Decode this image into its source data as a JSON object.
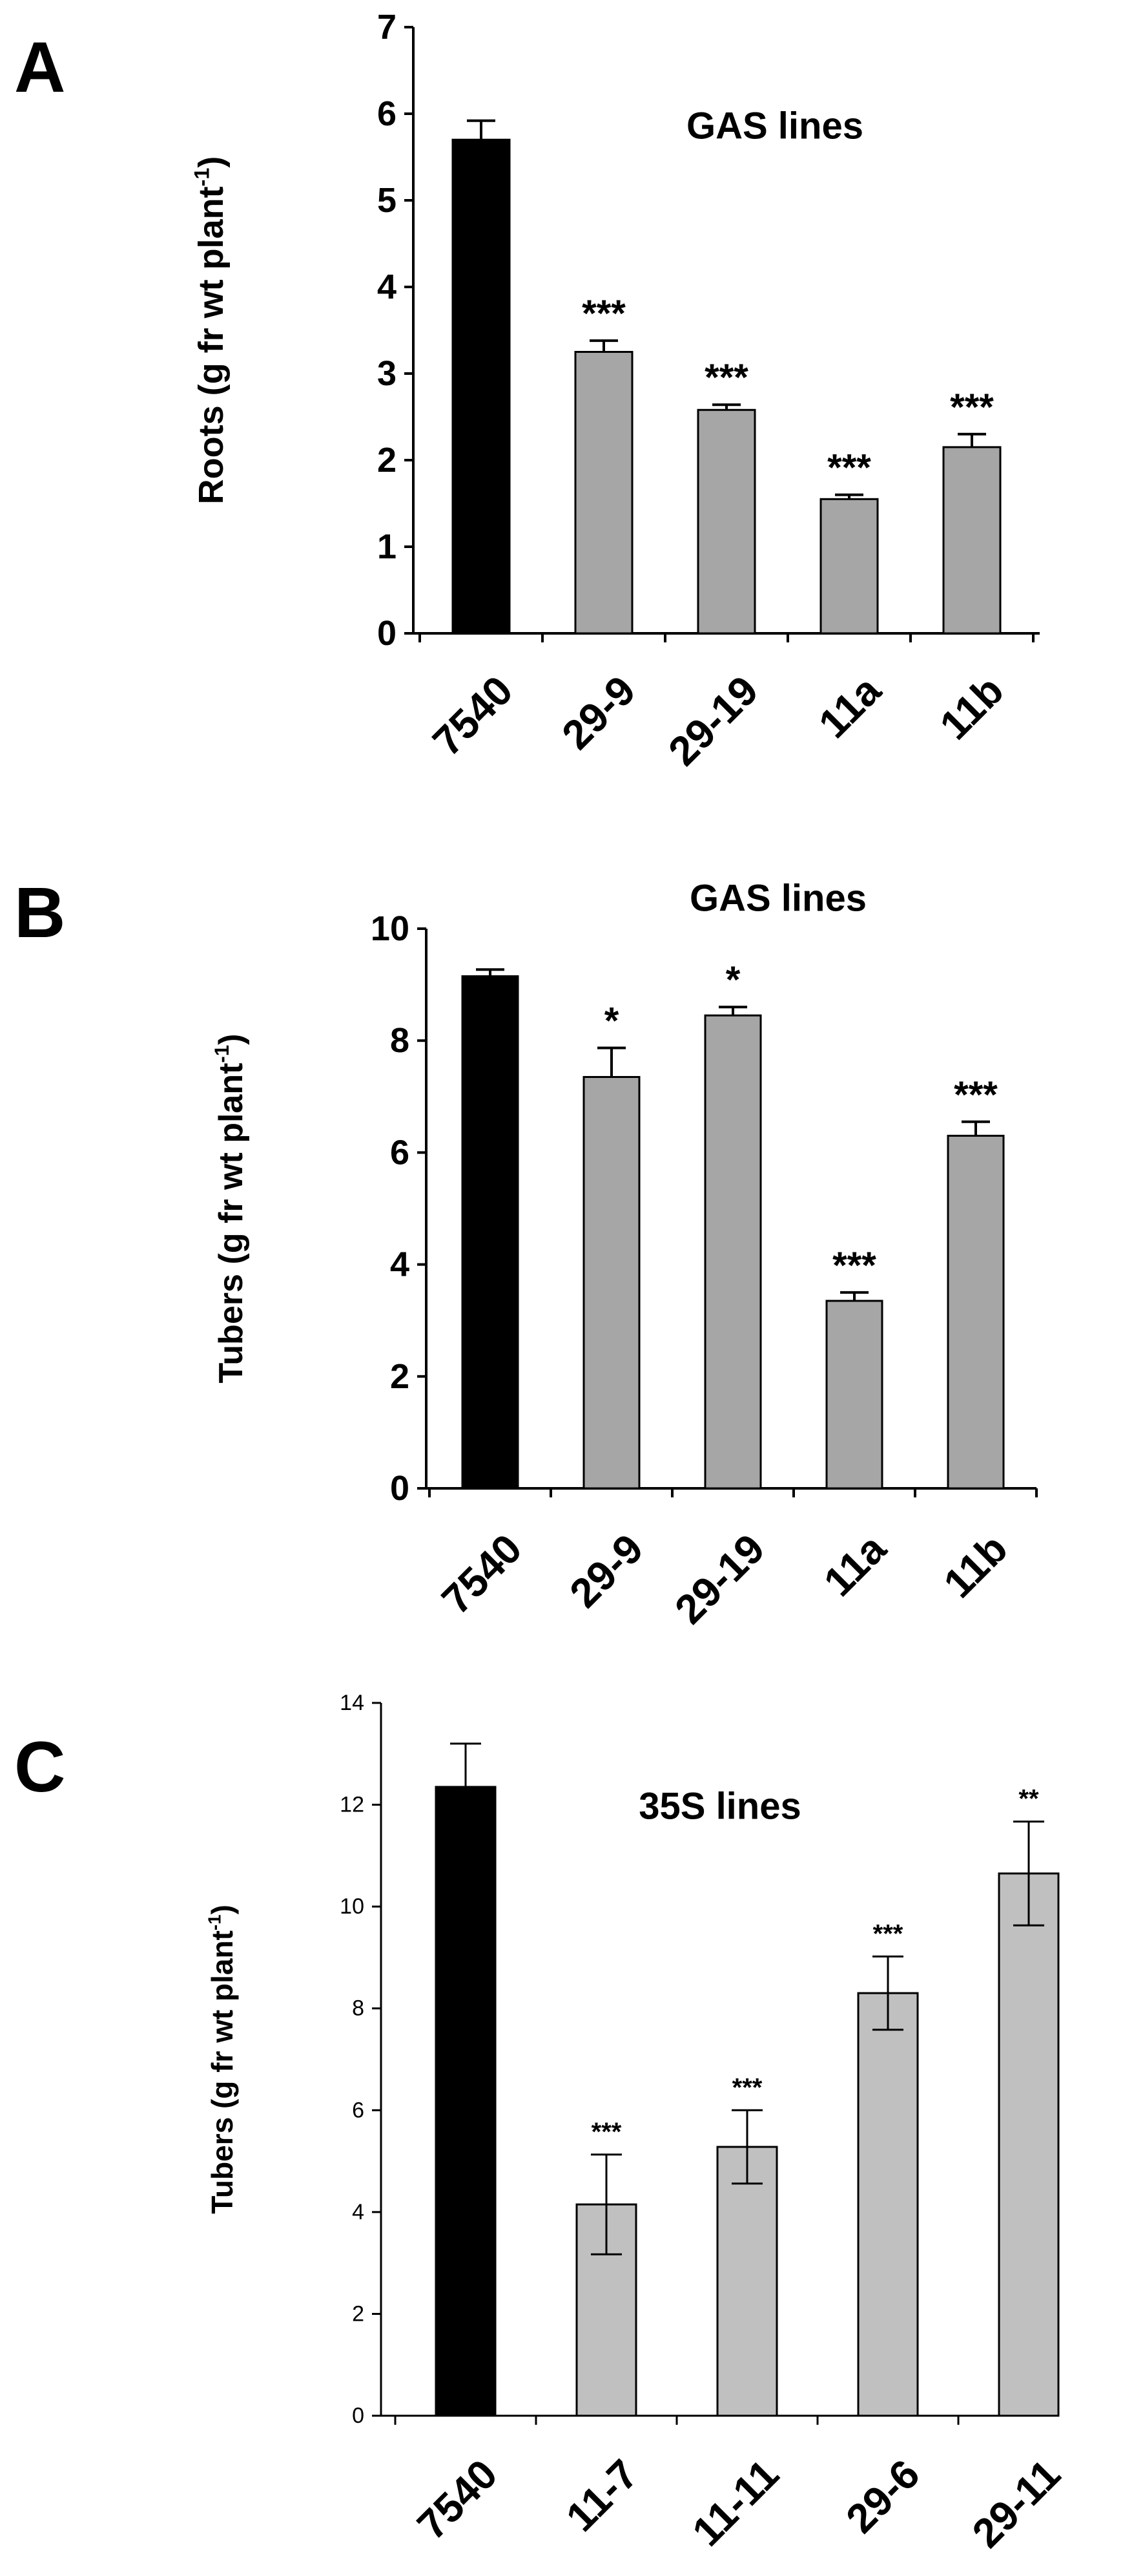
{
  "panels": [
    {
      "label": "A",
      "chart_data": {
        "type": "bar",
        "title": "GAS lines",
        "ylabel": "Roots (g fr wt plant",
        "ylabel_sup": "-1",
        "ylabel_close": ")",
        "ylim": [
          0,
          7
        ],
        "yticks": [
          "0",
          "1",
          "2",
          "3",
          "4",
          "5",
          "6",
          "7"
        ],
        "categories": [
          "7540",
          "29-9",
          "29-19",
          "11a",
          "11b"
        ],
        "values": [
          5.7,
          3.25,
          2.58,
          1.55,
          2.15
        ],
        "errors": [
          0.22,
          0.13,
          0.06,
          0.05,
          0.15
        ],
        "error_style": "upper",
        "significance": [
          "",
          "***",
          "***",
          "***",
          "***"
        ],
        "bar_colors": [
          "#000000",
          "#a6a6a6",
          "#a6a6a6",
          "#a6a6a6",
          "#a6a6a6"
        ],
        "grid": false
      }
    },
    {
      "label": "B",
      "chart_data": {
        "type": "bar",
        "title": "GAS lines",
        "ylabel": "Tubers (g fr wt plant",
        "ylabel_sup": "-1",
        "ylabel_close": ")",
        "ylim": [
          0,
          10
        ],
        "yticks": [
          "0",
          "2",
          "4",
          "6",
          "8",
          "10"
        ],
        "categories": [
          "7540",
          "29-9",
          "29-19",
          "11a",
          "11b"
        ],
        "values": [
          9.15,
          7.35,
          8.45,
          3.35,
          6.3
        ],
        "errors": [
          0.12,
          0.52,
          0.15,
          0.15,
          0.25
        ],
        "error_style": "upper",
        "significance": [
          "",
          "*",
          "*",
          "***",
          "***"
        ],
        "bar_colors": [
          "#000000",
          "#a6a6a6",
          "#a6a6a6",
          "#a6a6a6",
          "#a6a6a6"
        ],
        "grid": false
      }
    },
    {
      "label": "C",
      "chart_data": {
        "type": "bar",
        "title": "35S lines",
        "ylabel": "Tubers (g fr wt plant",
        "ylabel_sup": "-1",
        "ylabel_close": ")",
        "ylim": [
          0,
          14
        ],
        "yticks": [
          "0",
          "2",
          "4",
          "6",
          "8",
          "10",
          "12",
          "14"
        ],
        "categories": [
          "7540",
          "11-7",
          "11-11",
          "29-6",
          "29-11"
        ],
        "values": [
          12.35,
          4.15,
          5.28,
          8.3,
          10.65
        ],
        "errors": [
          0.85,
          0.98,
          0.72,
          0.72,
          1.02
        ],
        "error_style": "both",
        "significance": [
          "",
          "***",
          "***",
          "***",
          "**"
        ],
        "bar_colors": [
          "#000000",
          "#c0c0c0",
          "#c0c0c0",
          "#c0c0c0",
          "#c0c0c0"
        ],
        "grid": false
      }
    }
  ]
}
